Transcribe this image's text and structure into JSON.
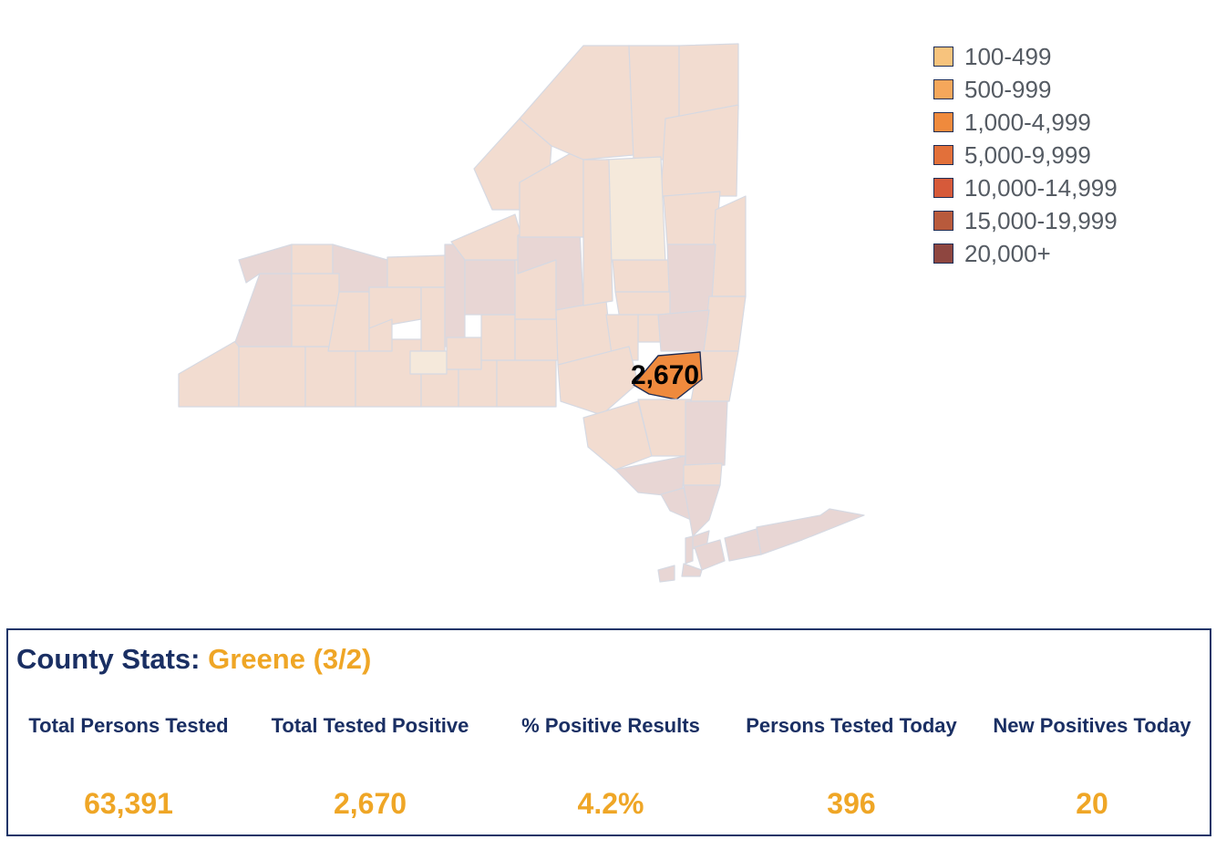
{
  "map": {
    "selected_label": "2,670"
  },
  "legend": {
    "items": [
      {
        "label": "100-499",
        "color": "#f7c37d"
      },
      {
        "label": "500-999",
        "color": "#f5a75b"
      },
      {
        "label": "1,000-4,999",
        "color": "#ef8a3d"
      },
      {
        "label": "5,000-9,999",
        "color": "#e2703a"
      },
      {
        "label": "10,000-14,999",
        "color": "#d65a3a"
      },
      {
        "label": "15,000-19,999",
        "color": "#b85a3c"
      },
      {
        "label": "20,000+",
        "color": "#8e4640"
      }
    ]
  },
  "stats": {
    "title_prefix": "County Stats: ",
    "county": "Greene (3/2)",
    "columns": [
      {
        "label": "Total Persons Tested",
        "value": "63,391"
      },
      {
        "label": "Total Tested Positive",
        "value": "2,670"
      },
      {
        "label": "% Positive Results",
        "value": "4.2%"
      },
      {
        "label": "Persons Tested Today",
        "value": "396"
      },
      {
        "label": "New Positives Today",
        "value": "20"
      }
    ]
  },
  "colors": {
    "navy": "#1a2f63",
    "accent": "#efa626",
    "county_fill": "#f2dcd0",
    "county_border": "#d6d9e2",
    "selected_fill": "#ef8a3d"
  }
}
